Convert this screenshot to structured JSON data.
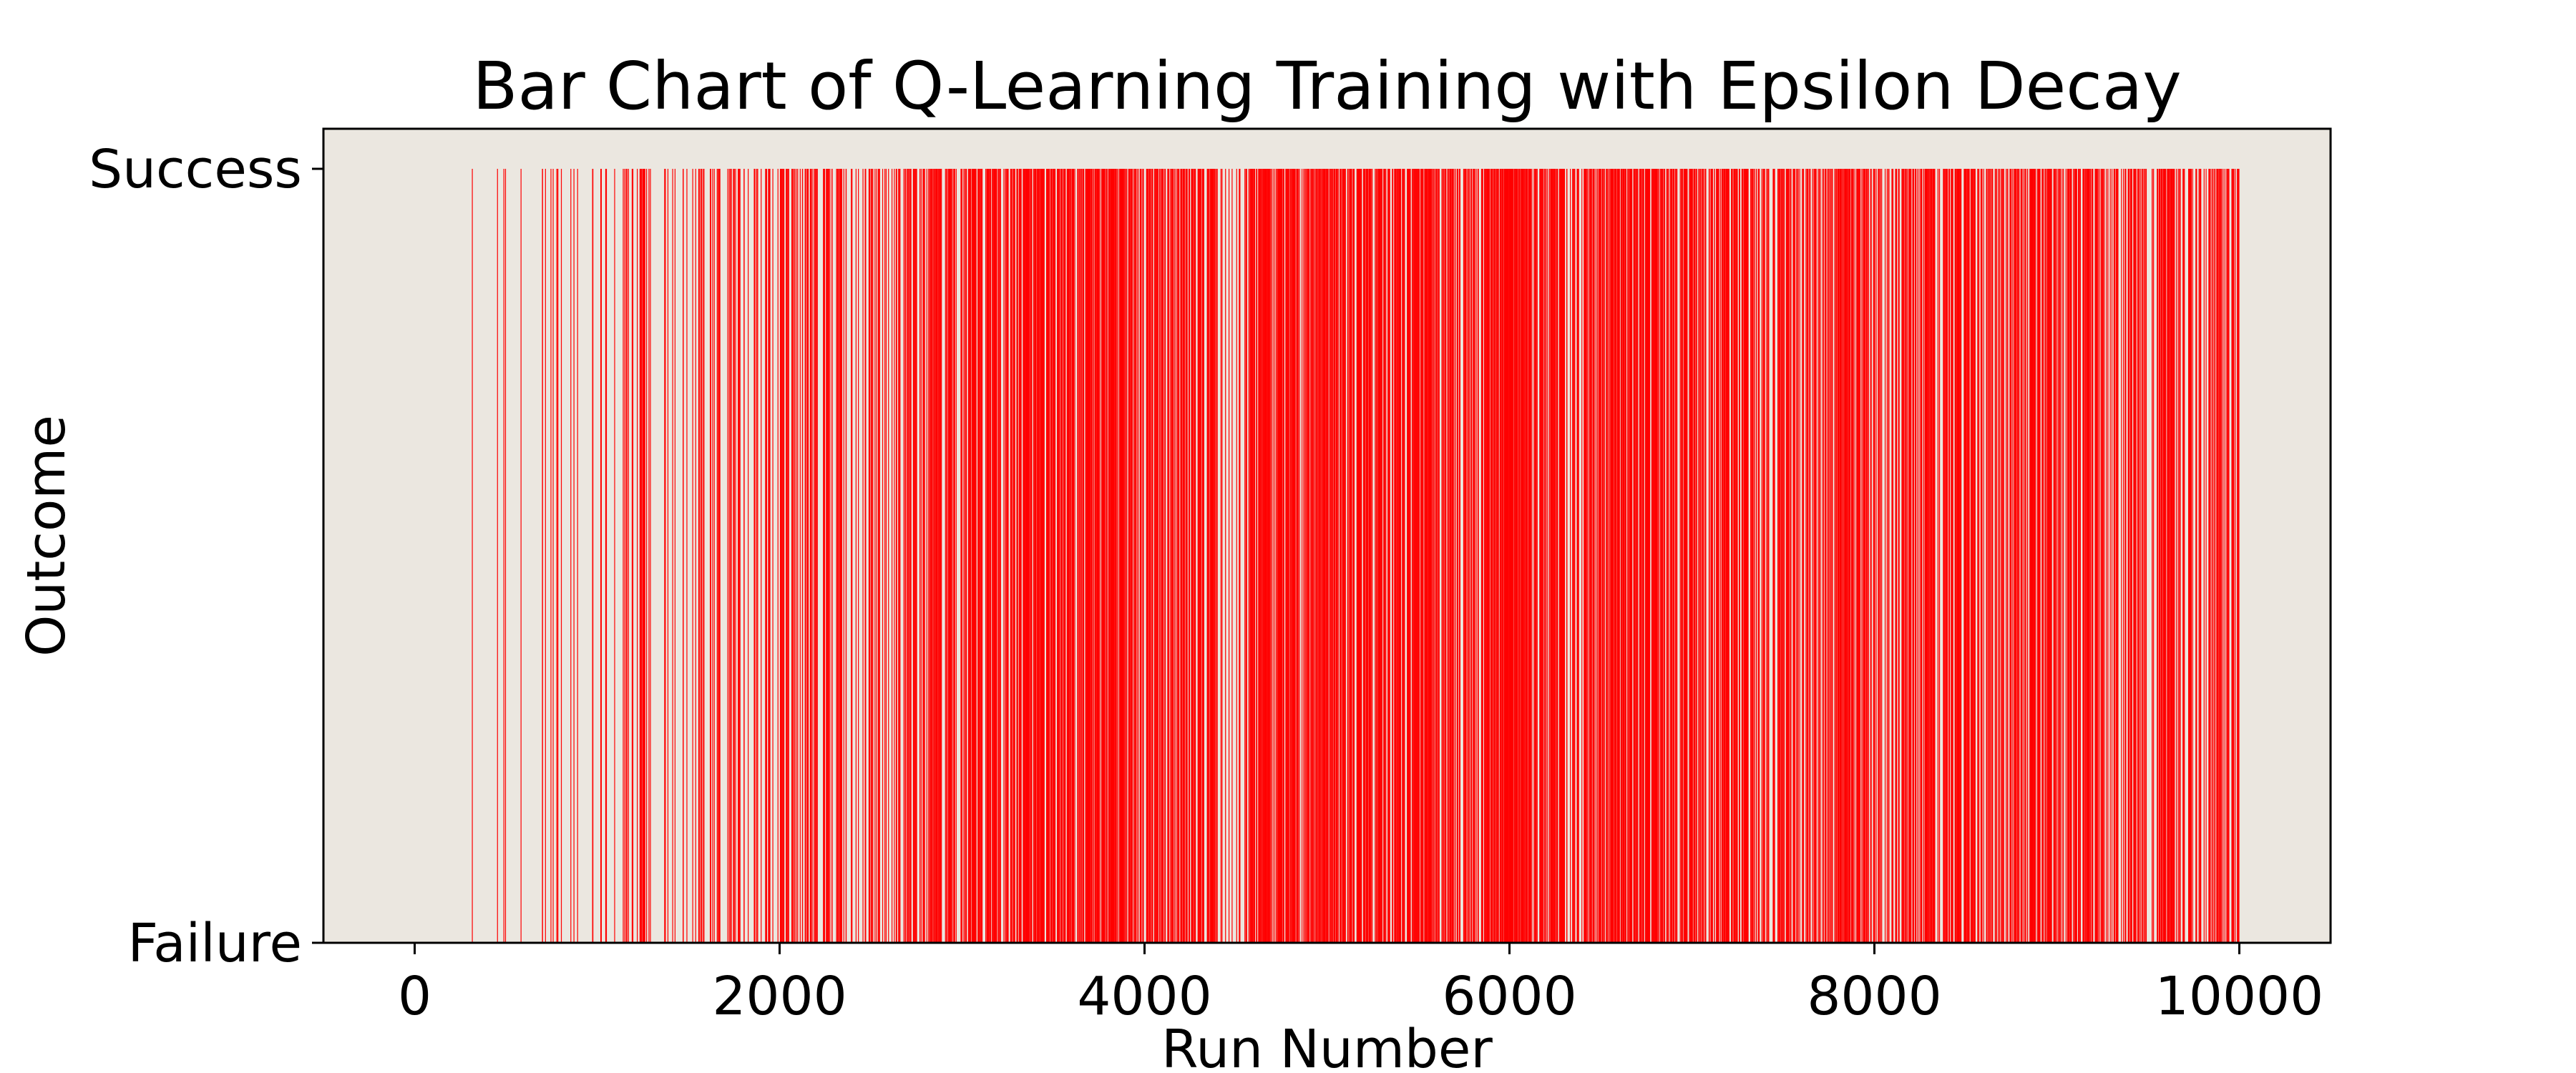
{
  "chart_data": {
    "type": "bar",
    "title": "Bar Chart of Q-Learning Training with Epsilon Decay",
    "xlabel": "Run Number",
    "ylabel": "Outcome",
    "xlim": [
      -500,
      10500
    ],
    "ylim": [
      0,
      1
    ],
    "x_ticks": [
      0,
      2000,
      4000,
      6000,
      8000,
      10000
    ],
    "y_tick_labels": [
      "Failure",
      "Success"
    ],
    "grid": false,
    "legend": "none",
    "colors": {
      "bars": "#ff0000",
      "plot_background": "#ebe7e0",
      "figure_background": "#ffffff"
    },
    "run_range": [
      1,
      10000
    ],
    "success_density_by_range": [
      {
        "from": 0,
        "to": 300,
        "success_rate": 0.0
      },
      {
        "from": 300,
        "to": 700,
        "success_rate": 0.01
      },
      {
        "from": 700,
        "to": 1000,
        "success_rate": 0.03
      },
      {
        "from": 1000,
        "to": 1500,
        "success_rate": 0.06
      },
      {
        "from": 1500,
        "to": 2000,
        "success_rate": 0.09
      },
      {
        "from": 2000,
        "to": 2700,
        "success_rate": 0.12
      },
      {
        "from": 2700,
        "to": 3300,
        "success_rate": 0.22
      },
      {
        "from": 3300,
        "to": 4000,
        "success_rate": 0.3
      },
      {
        "from": 4000,
        "to": 4400,
        "success_rate": 0.22
      },
      {
        "from": 4400,
        "to": 4550,
        "success_rate": 0.08
      },
      {
        "from": 4550,
        "to": 5000,
        "success_rate": 0.3
      },
      {
        "from": 5000,
        "to": 6000,
        "success_rate": 0.28
      },
      {
        "from": 6000,
        "to": 7000,
        "success_rate": 0.25
      },
      {
        "from": 7000,
        "to": 8000,
        "success_rate": 0.24
      },
      {
        "from": 8000,
        "to": 9000,
        "success_rate": 0.22
      },
      {
        "from": 9000,
        "to": 10000,
        "success_rate": 0.2
      }
    ]
  }
}
